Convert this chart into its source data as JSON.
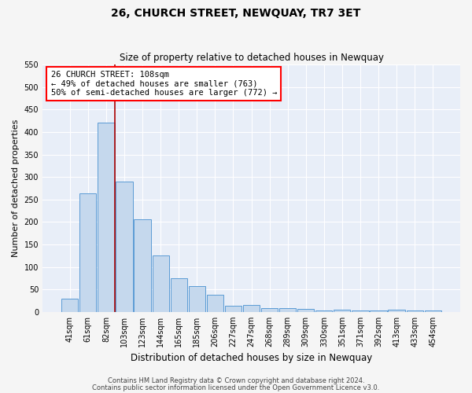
{
  "title": "26, CHURCH STREET, NEWQUAY, TR7 3ET",
  "subtitle": "Size of property relative to detached houses in Newquay",
  "xlabel": "Distribution of detached houses by size in Newquay",
  "ylabel": "Number of detached properties",
  "bar_color": "#c5d8ed",
  "bar_edge_color": "#5b9bd5",
  "background_color": "#e8eef8",
  "grid_color": "#ffffff",
  "fig_facecolor": "#f5f5f5",
  "categories": [
    "41sqm",
    "61sqm",
    "82sqm",
    "103sqm",
    "123sqm",
    "144sqm",
    "165sqm",
    "185sqm",
    "206sqm",
    "227sqm",
    "247sqm",
    "268sqm",
    "289sqm",
    "309sqm",
    "330sqm",
    "351sqm",
    "371sqm",
    "392sqm",
    "413sqm",
    "433sqm",
    "454sqm"
  ],
  "values": [
    30,
    263,
    420,
    290,
    206,
    125,
    75,
    58,
    38,
    14,
    15,
    9,
    9,
    6,
    4,
    5,
    4,
    3,
    5,
    3,
    4
  ],
  "ylim": [
    0,
    550
  ],
  "yticks": [
    0,
    50,
    100,
    150,
    200,
    250,
    300,
    350,
    400,
    450,
    500,
    550
  ],
  "marker_index": 3,
  "marker_color": "#aa0000",
  "annotation_title": "26 CHURCH STREET: 108sqm",
  "annotation_line1": "← 49% of detached houses are smaller (763)",
  "annotation_line2": "50% of semi-detached houses are larger (772) →",
  "footer_line1": "Contains HM Land Registry data © Crown copyright and database right 2024.",
  "footer_line2": "Contains public sector information licensed under the Open Government Licence v3.0.",
  "title_fontsize": 10,
  "subtitle_fontsize": 8.5,
  "ylabel_fontsize": 8,
  "xlabel_fontsize": 8.5,
  "tick_fontsize": 7,
  "annotation_fontsize": 7.5,
  "footer_fontsize": 6
}
